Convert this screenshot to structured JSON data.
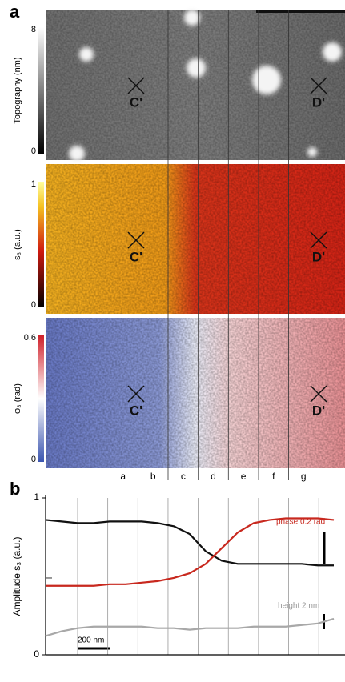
{
  "panel_a": {
    "label": "a",
    "maps": [
      {
        "title": "Topography (nm)",
        "ticks": [
          8,
          0
        ]
      },
      {
        "title": "s₃ (a.u.)",
        "ticks": [
          1,
          0
        ]
      },
      {
        "title": "φ₃ (rad)",
        "ticks": [
          0.6,
          0
        ]
      }
    ],
    "markers": [
      "C'",
      "D'"
    ],
    "columns": [
      "a",
      "b",
      "c",
      "d",
      "e",
      "f",
      "g"
    ]
  },
  "panel_b": {
    "label": "b"
  },
  "chart_data": {
    "type": "line",
    "ylabel": "Amplitude s₃ (a.u.)",
    "x": [
      0,
      100,
      200,
      300,
      400,
      500,
      600,
      700,
      800,
      900,
      1000,
      1100,
      1200,
      1300,
      1400,
      1500,
      1600,
      1700,
      1800
    ],
    "series": [
      {
        "color": "#111111",
        "values": [
          0.86,
          0.85,
          0.84,
          0.84,
          0.85,
          0.85,
          0.85,
          0.84,
          0.82,
          0.77,
          0.66,
          0.6,
          0.58,
          0.58,
          0.58,
          0.58,
          0.58,
          0.57,
          0.57
        ]
      },
      {
        "color": "#c8281e",
        "values": [
          0.44,
          0.44,
          0.44,
          0.44,
          0.45,
          0.45,
          0.46,
          0.47,
          0.49,
          0.52,
          0.58,
          0.68,
          0.78,
          0.84,
          0.86,
          0.87,
          0.87,
          0.87,
          0.86
        ]
      },
      {
        "color": "#a8a8a8",
        "values": [
          0.12,
          0.15,
          0.17,
          0.18,
          0.18,
          0.18,
          0.18,
          0.17,
          0.17,
          0.16,
          0.17,
          0.17,
          0.17,
          0.18,
          0.18,
          0.18,
          0.19,
          0.2,
          0.23
        ]
      }
    ],
    "xlim": [
      0,
      1870
    ],
    "ylim": [
      0,
      1
    ],
    "yticks": [
      0,
      1
    ],
    "annotations": [
      "phase 0.2 rad",
      "height 2 nm"
    ],
    "scale_bar": "200 nm"
  }
}
